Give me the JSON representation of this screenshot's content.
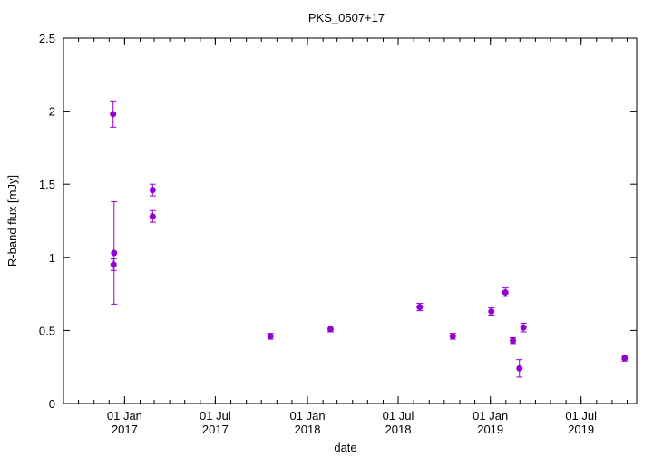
{
  "chart_data": {
    "type": "scatter",
    "title": "PKS_0507+17",
    "xlabel": "date",
    "ylabel": "R-band flux [mJy]",
    "xlim": [
      "2016-09-01",
      "2019-10-20"
    ],
    "ylim": [
      0,
      2.5
    ],
    "grid": false,
    "y_ticks": [
      "0",
      "0.5",
      "1",
      "1.5",
      "2",
      "2.5"
    ],
    "x_ticks": [
      {
        "date": "2017-01-01",
        "label1": "01 Jan",
        "label2": "2017"
      },
      {
        "date": "2017-07-01",
        "label1": "01 Jul",
        "label2": "2017"
      },
      {
        "date": "2018-01-01",
        "label1": "01 Jan",
        "label2": "2018"
      },
      {
        "date": "2018-07-01",
        "label1": "01 Jul",
        "label2": "2018"
      },
      {
        "date": "2019-01-01",
        "label1": "01 Jan",
        "label2": "2019"
      },
      {
        "date": "2019-07-01",
        "label1": "01 Jul",
        "label2": "2019"
      }
    ],
    "marker_color": "#9400d3",
    "series": [
      {
        "points": [
          {
            "date": "2016-12-09",
            "y": 1.98,
            "err": 0.09
          },
          {
            "date": "2016-12-10",
            "y": 0.95,
            "err": 0.04
          },
          {
            "date": "2016-12-11",
            "y": 1.03,
            "err": 0.35
          },
          {
            "date": "2017-02-26",
            "y": 1.46,
            "err": 0.04
          },
          {
            "date": "2017-02-26",
            "y": 1.28,
            "err": 0.04
          },
          {
            "date": "2017-10-19",
            "y": 0.46,
            "err": 0.02
          },
          {
            "date": "2018-02-16",
            "y": 0.51,
            "err": 0.02
          },
          {
            "date": "2018-08-13",
            "y": 0.66,
            "err": 0.025
          },
          {
            "date": "2018-10-18",
            "y": 0.46,
            "err": 0.02
          },
          {
            "date": "2019-01-03",
            "y": 0.63,
            "err": 0.025
          },
          {
            "date": "2019-01-31",
            "y": 0.76,
            "err": 0.03
          },
          {
            "date": "2019-02-15",
            "y": 0.43,
            "err": 0.02
          },
          {
            "date": "2019-02-28",
            "y": 0.24,
            "err": 0.06
          },
          {
            "date": "2019-03-08",
            "y": 0.52,
            "err": 0.03
          },
          {
            "date": "2019-09-26",
            "y": 0.31,
            "err": 0.02
          }
        ]
      }
    ]
  }
}
